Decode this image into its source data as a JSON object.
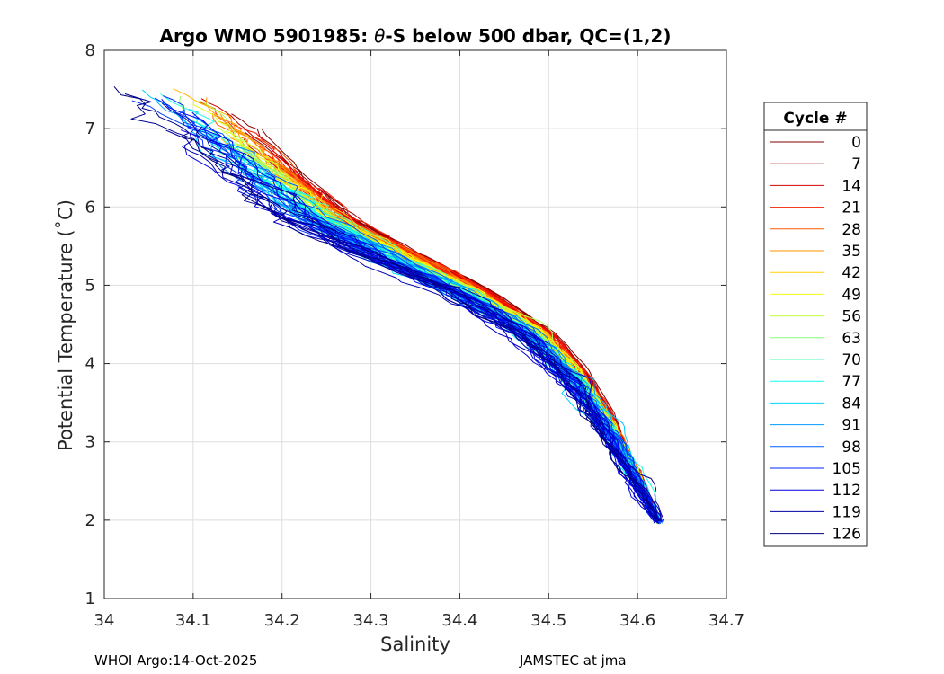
{
  "chart_data": {
    "type": "line",
    "title_prefix": "Argo WMO 5901985: ",
    "title_symbol": "θ",
    "title_suffix": "-S below 500 dbar,  QC=(1,2)",
    "xlabel": "Salinity",
    "ylabel": "Potential Temperature (˚C)",
    "xlim": [
      34.0,
      34.7
    ],
    "ylim": [
      1,
      8
    ],
    "xticks": [
      34,
      34.1,
      34.2,
      34.3,
      34.4,
      34.5,
      34.6,
      34.7
    ],
    "xtick_labels": [
      "34",
      "34.1",
      "34.2",
      "34.3",
      "34.4",
      "34.5",
      "34.6",
      "34.7"
    ],
    "yticks": [
      1,
      2,
      3,
      4,
      5,
      6,
      7,
      8
    ],
    "ytick_labels": [
      "1",
      "2",
      "3",
      "4",
      "5",
      "6",
      "7",
      "8"
    ],
    "grid": true,
    "colormap": [
      "#800000",
      "#ff0000",
      "#ff8000",
      "#ffff00",
      "#80ff80",
      "#00ffff",
      "#0080ff",
      "#0000ff",
      "#000080"
    ],
    "legend": {
      "title": "Cycle #",
      "placement": "right",
      "entries": [
        {
          "label": "0",
          "color": "#800000"
        },
        {
          "label": "7",
          "color": "#a00000"
        },
        {
          "label": "14",
          "color": "#d40000"
        },
        {
          "label": "21",
          "color": "#f52000"
        },
        {
          "label": "28",
          "color": "#ff5a00"
        },
        {
          "label": "35",
          "color": "#ff9400"
        },
        {
          "label": "42",
          "color": "#ffcd00"
        },
        {
          "label": "49",
          "color": "#f8ff08"
        },
        {
          "label": "56",
          "color": "#bfff40"
        },
        {
          "label": "63",
          "color": "#85ff7a"
        },
        {
          "label": "70",
          "color": "#4cffb3"
        },
        {
          "label": "77",
          "color": "#12ffed"
        },
        {
          "label": "84",
          "color": "#00d4ff"
        },
        {
          "label": "91",
          "color": "#009aff"
        },
        {
          "label": "98",
          "color": "#0061ff"
        },
        {
          "label": "105",
          "color": "#0027ff"
        },
        {
          "label": "112",
          "color": "#0000e0"
        },
        {
          "label": "119",
          "color": "#0000a6"
        },
        {
          "label": "126",
          "color": "#000080"
        }
      ]
    },
    "n_profiles": 130,
    "series_template": {
      "deep_end": {
        "salinity": 34.625,
        "theta": 1.95
      },
      "center_curve": [
        {
          "salinity": 34.625,
          "theta": 1.95
        },
        {
          "salinity": 34.6,
          "theta": 2.5
        },
        {
          "salinity": 34.565,
          "theta": 3.2
        },
        {
          "salinity": 34.53,
          "theta": 3.8
        },
        {
          "salinity": 34.48,
          "theta": 4.4
        },
        {
          "salinity": 34.41,
          "theta": 4.9
        },
        {
          "salinity": 34.33,
          "theta": 5.35
        },
        {
          "salinity": 34.24,
          "theta": 5.85
        },
        {
          "salinity": 34.17,
          "theta": 6.5
        }
      ]
    }
  },
  "footer": {
    "left": "WHOI Argo:14-Oct-2025",
    "right": "JAMSTEC at jma"
  }
}
